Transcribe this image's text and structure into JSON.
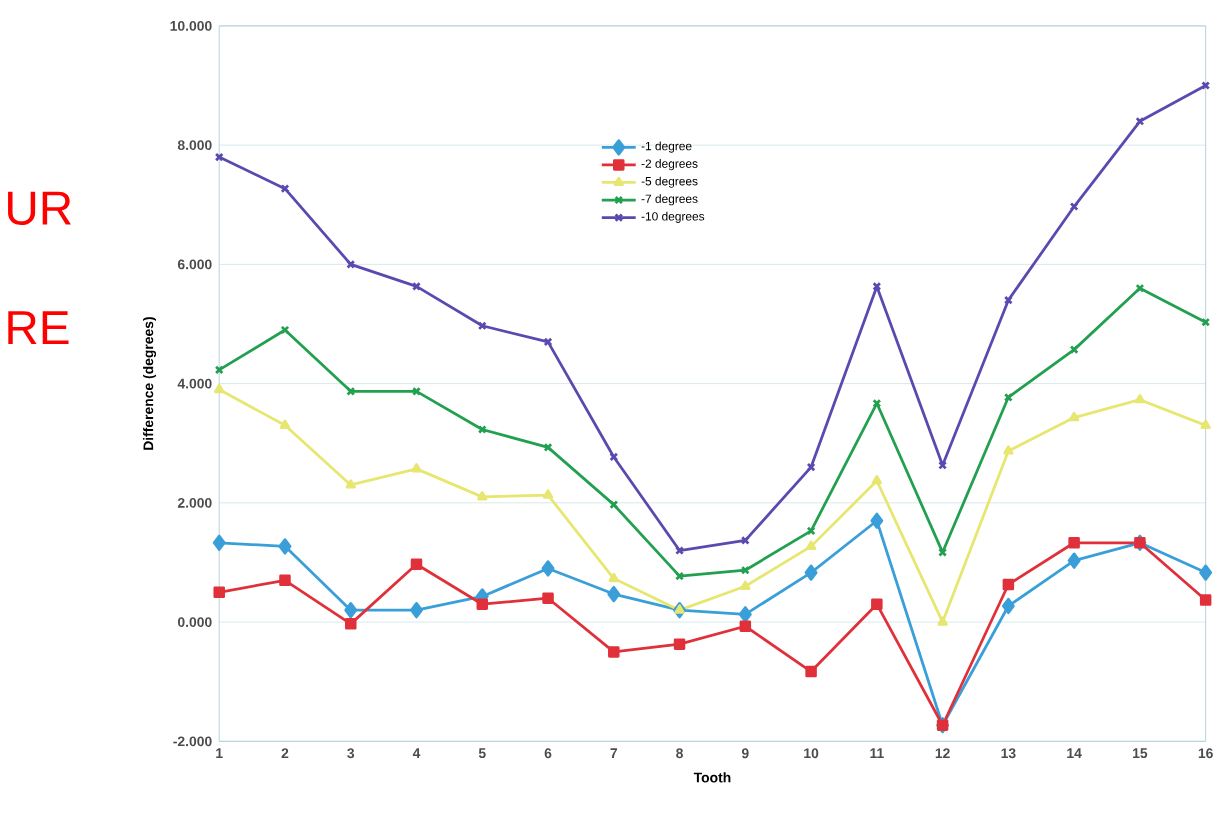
{
  "chart_data": {
    "type": "line",
    "xlabel": "Tooth",
    "ylabel": "Difference (degrees)",
    "categories": [
      "1",
      "2",
      "3",
      "4",
      "5",
      "6",
      "7",
      "8",
      "9",
      "10",
      "11",
      "12",
      "13",
      "14",
      "15",
      "16"
    ],
    "series": [
      {
        "name": "-1 degree",
        "color": "#3a9fd8",
        "marker": "diamond",
        "values": [
          1.33,
          1.27,
          0.2,
          0.2,
          0.43,
          0.9,
          0.47,
          0.2,
          0.13,
          0.83,
          1.7,
          -1.73,
          0.27,
          1.03,
          1.33,
          0.83
        ]
      },
      {
        "name": "-2 degrees",
        "color": "#e0303a",
        "marker": "square",
        "values": [
          0.5,
          0.7,
          -0.03,
          0.97,
          0.3,
          0.4,
          -0.5,
          -0.37,
          -0.07,
          -0.83,
          0.3,
          -1.73,
          0.63,
          1.33,
          1.33,
          0.37
        ]
      },
      {
        "name": "-5 degrees",
        "color": "#e6e670",
        "marker": "triangle",
        "values": [
          3.9,
          3.3,
          2.3,
          2.57,
          2.1,
          2.13,
          0.73,
          0.2,
          0.6,
          1.27,
          2.37,
          0.0,
          2.87,
          3.43,
          3.73,
          3.3
        ]
      },
      {
        "name": "-7 degrees",
        "color": "#22a050",
        "marker": "cross",
        "values": [
          4.23,
          4.9,
          3.87,
          3.87,
          3.23,
          2.93,
          1.97,
          0.77,
          0.87,
          1.53,
          3.67,
          1.17,
          3.77,
          4.57,
          5.6,
          5.03
        ]
      },
      {
        "name": "-10 degrees",
        "color": "#5a4ab0",
        "marker": "cross",
        "values": [
          7.8,
          7.27,
          6.0,
          5.63,
          4.97,
          4.7,
          2.77,
          1.2,
          1.37,
          2.6,
          5.63,
          2.63,
          5.4,
          6.97,
          8.4,
          9.0
        ]
      }
    ],
    "ylim": [
      -2,
      10
    ],
    "yticks": [
      {
        "value": -2,
        "label": "-2.000"
      },
      {
        "value": 0,
        "label": "0.000"
      },
      {
        "value": 2,
        "label": "2.000"
      },
      {
        "value": 4,
        "label": "4.000"
      },
      {
        "value": 6,
        "label": "6.000"
      },
      {
        "value": 8,
        "label": "8.000"
      },
      {
        "value": 10,
        "label": "10.000"
      }
    ],
    "grid": "y",
    "legend": "top",
    "line_style": "solid",
    "annotations": [
      "UR",
      "RE"
    ]
  }
}
